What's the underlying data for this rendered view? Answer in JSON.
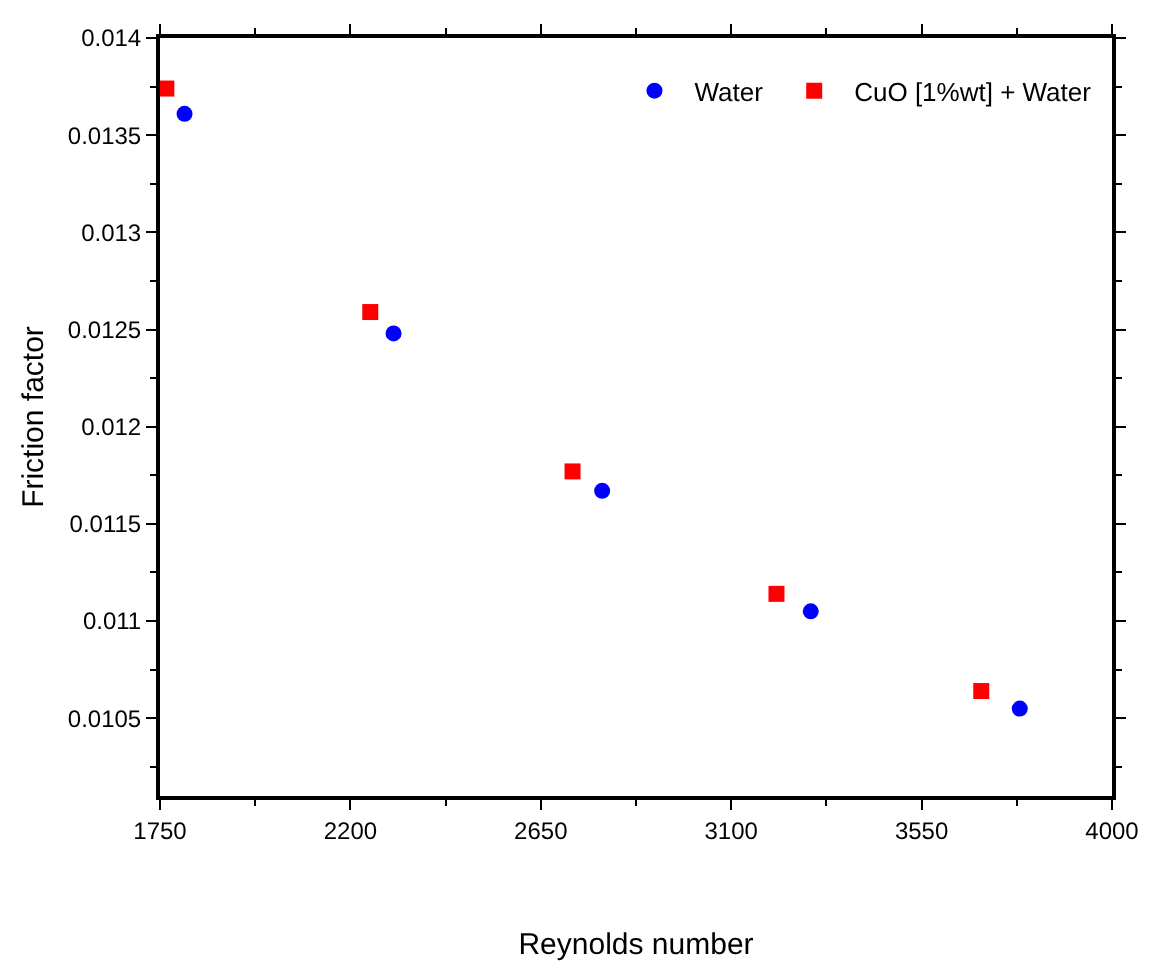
{
  "chart_data": {
    "type": "scatter",
    "xlabel": "Reynolds number",
    "ylabel": "Friction factor",
    "xlim": [
      1750,
      4000
    ],
    "xticks": [
      1750,
      2200,
      2650,
      3100,
      3550,
      4000
    ],
    "ylim": [
      0.0101,
      0.014
    ],
    "yticks": [
      0.0105,
      0.011,
      0.0115,
      0.012,
      0.0125,
      0.013,
      0.0135,
      0.014
    ],
    "legend": "top right",
    "series": [
      {
        "name": "Water",
        "color": "#0000ff",
        "marker": "circle",
        "x": [
          1808,
          2302,
          2795,
          3288,
          3782
        ],
        "values": [
          0.01361,
          0.01248,
          0.01167,
          0.01105,
          0.01055
        ]
      },
      {
        "name": "CuO [1%wt] + Water",
        "color": "#ff0000",
        "marker": "square",
        "x": [
          1765,
          2247,
          2725,
          3207,
          3691
        ],
        "values": [
          0.01374,
          0.01259,
          0.01177,
          0.01114,
          0.01064
        ]
      }
    ]
  }
}
